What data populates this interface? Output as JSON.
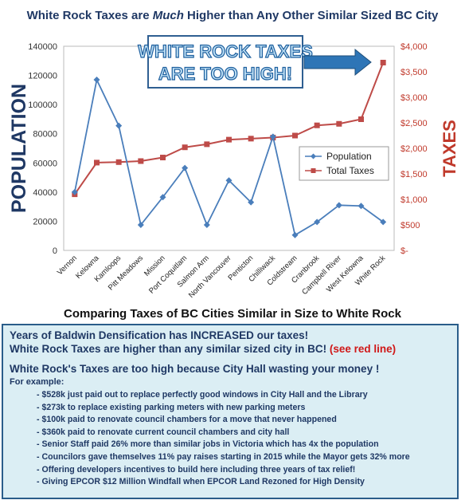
{
  "title_prefix": "White Rock Taxes are ",
  "title_emph": "Much",
  "title_suffix": " Higher than Any Other Similar Sized BC City",
  "banner_lines": [
    "WHITE ROCK TAXES",
    "ARE TOO HIGH!"
  ],
  "left_axis_label": "POPULATION",
  "right_axis_label": "TAXES",
  "subtitle": "Comparing Taxes of BC Cities Similar in Size to White Rock",
  "colors": {
    "population": "#4a7ebb",
    "taxes": "#be4b48",
    "title": "#1f3864",
    "accent_red": "#c0392b",
    "box_bg": "#dbeef4"
  },
  "chart_data": {
    "type": "line",
    "categories": [
      "Vernon",
      "Kelowna",
      "Kamloops",
      "Pitt Meadows",
      "Mission",
      "Port Coquitlam",
      "Salmon Arm",
      "North Vancouver",
      "Penticton",
      "Chilliwack",
      "Coldstream",
      "Cranbrook",
      "Campbell River",
      "West Kelowna",
      "White Rock"
    ],
    "series": [
      {
        "name": "Population",
        "axis": "left",
        "values": [
          40000,
          117000,
          85500,
          17500,
          36500,
          56500,
          17500,
          48000,
          33000,
          78000,
          10500,
          19500,
          31000,
          30500,
          19500
        ]
      },
      {
        "name": "Total Taxes",
        "axis": "right",
        "values": [
          1100,
          1720,
          1730,
          1750,
          1820,
          2020,
          2080,
          2170,
          2190,
          2210,
          2250,
          2450,
          2480,
          2570,
          3680
        ]
      }
    ],
    "y_left": {
      "min": 0,
      "max": 140000,
      "ticks": [
        "0",
        "20000",
        "40000",
        "60000",
        "80000",
        "100000",
        "120000",
        "140000"
      ]
    },
    "y_right": {
      "min": 0,
      "max": 4000,
      "ticks": [
        "$-",
        "$500",
        "$1,000",
        "$1,500",
        "$2,000",
        "$2,500",
        "$3,000",
        "$3,500",
        "$4,000"
      ]
    },
    "legend": [
      "Population",
      "Total Taxes"
    ],
    "legend_position": "right",
    "grid": false
  },
  "info": {
    "line1": "Years of Baldwin Densification has INCREASED  our taxes!",
    "line2": "White Rock Taxes are higher than any similar sized city in BC! ",
    "line2_red": "(see red line)",
    "line3": "White Rock's Taxes are too high because City Hall wasting your money !",
    "line4": "For example:",
    "bullets": [
      "$528k just paid out to replace perfectly good windows in City Hall and the Library",
      "$273k to replace existing parking meters with new parking meters",
      "$100k paid to renovate council chambers for a move that never happened",
      "$360k paid to renovate current council chambers and city hall",
      "Senior Staff paid 26% more than similar jobs in Victoria which has 4x the population",
      "Councilors gave themselves 11% pay raises starting in 2015 while the Mayor gets 32% more",
      "Offering developers incentives to build here including three years of tax relief!",
      "Giving EPCOR $12 Million Windfall when EPCOR Land Rezoned for High Density"
    ]
  }
}
